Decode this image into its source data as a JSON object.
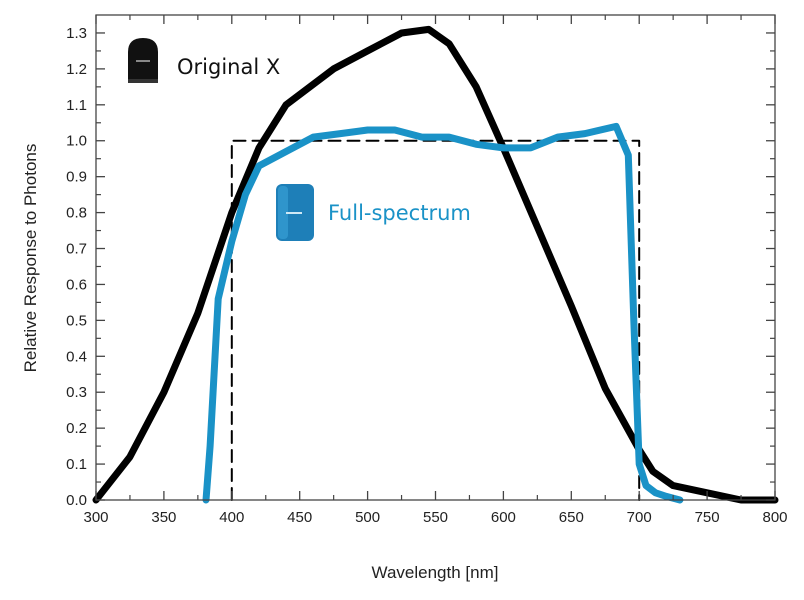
{
  "chart_data": {
    "type": "line",
    "title": "",
    "xlabel": "Wavelength [nm]",
    "ylabel": "Relative Response to Photons",
    "xlim": [
      300,
      800
    ],
    "ylim": [
      0,
      1.35
    ],
    "xticks": [
      300,
      350,
      400,
      450,
      500,
      550,
      600,
      650,
      700,
      750,
      800
    ],
    "yticks": [
      "0.0",
      "0.1",
      "0.2",
      "0.3",
      "0.4",
      "0.5",
      "0.6",
      "0.7",
      "0.8",
      "0.9",
      "1.0",
      "1.1",
      "1.2",
      "1.3"
    ],
    "grid": false,
    "series": [
      {
        "name": "Original X",
        "color": "#000000",
        "style": "solid",
        "x": [
          300,
          325,
          350,
          375,
          400,
          420,
          440,
          475,
          500,
          525,
          545,
          560,
          580,
          600,
          625,
          650,
          675,
          700,
          710,
          725,
          750,
          775,
          800
        ],
        "y": [
          0.0,
          0.12,
          0.3,
          0.52,
          0.8,
          0.98,
          1.1,
          1.2,
          1.25,
          1.3,
          1.31,
          1.27,
          1.15,
          0.98,
          0.76,
          0.54,
          0.31,
          0.14,
          0.08,
          0.04,
          0.02,
          0.0,
          0.0
        ]
      },
      {
        "name": "Full-spectrum",
        "color": "#1a92c7",
        "style": "solid",
        "x": [
          381,
          384,
          390,
          400,
          410,
          420,
          440,
          460,
          480,
          500,
          520,
          540,
          560,
          580,
          600,
          620,
          640,
          660,
          683,
          692,
          696,
          700,
          705,
          712,
          720,
          730
        ],
        "y": [
          0.0,
          0.15,
          0.56,
          0.72,
          0.85,
          0.93,
          0.97,
          1.01,
          1.02,
          1.03,
          1.03,
          1.01,
          1.01,
          0.99,
          0.98,
          0.98,
          1.01,
          1.02,
          1.04,
          0.96,
          0.5,
          0.1,
          0.04,
          0.02,
          0.01,
          0.0
        ]
      },
      {
        "name": "",
        "color": "#000000",
        "style": "dashed",
        "x": [
          400,
          400,
          700,
          700
        ],
        "y": [
          0.0,
          1.0,
          1.0,
          0.0
        ]
      }
    ],
    "annotations": [
      {
        "text": "Original X",
        "color": "#000000",
        "icon": "black-sensor-icon"
      },
      {
        "text": "Full-spectrum",
        "color": "#1a92c7",
        "icon": "blue-sensor-icon"
      }
    ]
  }
}
